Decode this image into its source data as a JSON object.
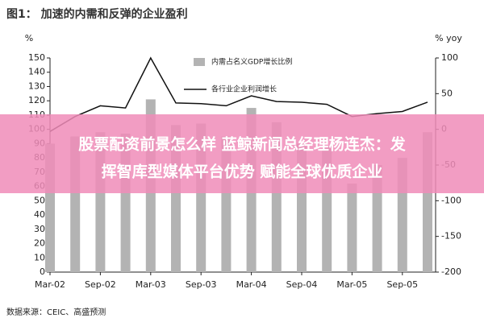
{
  "chart_data": {
    "type": "bar-line",
    "title": "图1： 加速的内需和反弹的企业盈利",
    "ylabel": "%",
    "y2label": "% yoy",
    "source": "数据来源：CEIC、高盛预测",
    "categories": [
      "Mar-02",
      null,
      "Sep-02",
      null,
      "Mar-03",
      null,
      "Sep-03",
      null,
      "Mar-04",
      null,
      "Sep-04",
      null,
      "Mar-05",
      null,
      "Sep-05",
      null
    ],
    "series": [
      {
        "name": "内需占名义GDP增长比例",
        "type": "bar",
        "color": "#b3b3b3",
        "values": [
          90,
          95,
          98,
          97,
          121,
          103,
          104,
          95,
          115,
          105,
          90,
          88,
          62,
          75,
          80,
          98
        ]
      },
      {
        "name": "各行业企业利润增长",
        "type": "line",
        "axis": "y2",
        "color": "#111111",
        "values": [
          -3,
          18,
          33,
          30,
          100,
          37,
          36,
          33,
          47,
          39,
          38,
          35,
          18,
          22,
          25,
          38
        ]
      }
    ],
    "ylim": [
      0,
      150
    ],
    "yticks": [
      0,
      10,
      20,
      30,
      40,
      50,
      60,
      70,
      80,
      90,
      100,
      110,
      120,
      130,
      140,
      150
    ],
    "y2lim": [
      -200,
      100
    ],
    "y2ticks": [
      -200,
      -150,
      -100,
      -50,
      0,
      50,
      100
    ],
    "grid": false
  },
  "overlay": {
    "lines": [
      "股票配资前景怎么样 蓝鲸新闻总经理杨连杰：发",
      "挥智库型媒体平台优势 赋能全球优质企业"
    ]
  }
}
